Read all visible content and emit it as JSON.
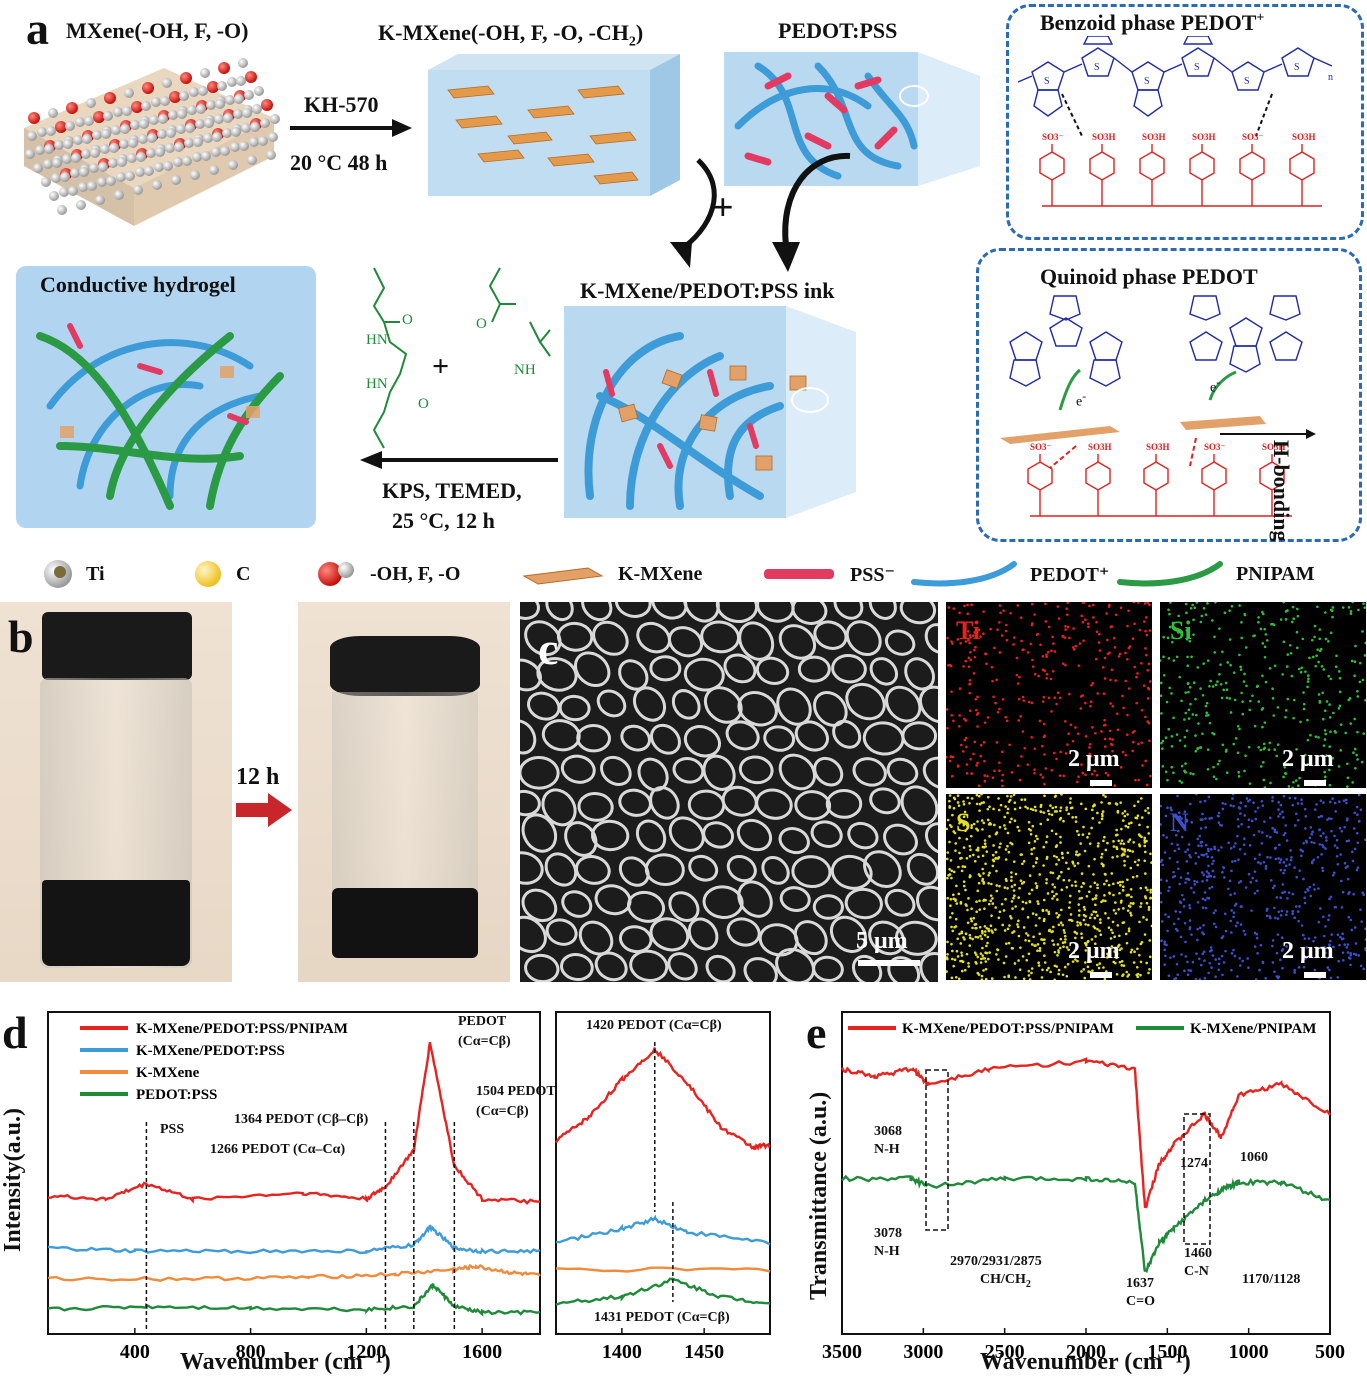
{
  "panel_a": {
    "letter": "a",
    "mxene_title": "MXene(-OH, F, -O)",
    "kmxene_title": "K-MXene(-OH, F, -O, -CH",
    "kmxene_sub": "2",
    "kmxene_close": ")",
    "pedot_pss_title": "PEDOT:PSS",
    "arrow1_top": "KH-570",
    "arrow1_bottom": "20 °C 48 h",
    "plus1": "+",
    "ink_title": "K-MXene/PEDOT:PSS ink",
    "hydrogel_title": "Conductive hydrogel",
    "plus2": "+",
    "arrow2_top": "KPS, TEMED,",
    "arrow2_bottom": "25 °C, 12 h",
    "benzoid_title": "Benzoid phase PEDOT",
    "benzoid_sup": "+",
    "quinoid_title": "Quinoid phase PEDOT",
    "hbonding": "H-bonding",
    "e_minus": "e",
    "so3": "SO",
    "so3h": "SO3H",
    "monomer_labels": [
      "O",
      "HN",
      "HN",
      "O",
      "O",
      "NH"
    ],
    "legend": [
      {
        "label": "Ti"
      },
      {
        "label": "C"
      },
      {
        "label": "-OH, F, -O"
      },
      {
        "label": "K-MXene"
      },
      {
        "label": "PSS⁻"
      },
      {
        "label": "PEDOT⁺"
      },
      {
        "label": "PNIPAM"
      }
    ]
  },
  "panel_b": {
    "letter": "b",
    "time": "12 h"
  },
  "panel_c": {
    "letter": "c",
    "scale_main": "5 μm",
    "maps": [
      {
        "element": "Ti",
        "scale": "2 μm",
        "color": "#e8201e"
      },
      {
        "element": "Si",
        "scale": "2 μm",
        "color": "#2fbf3a"
      },
      {
        "element": "S",
        "scale": "2 μm",
        "color": "#e6e21a"
      },
      {
        "element": "N",
        "scale": "2 μm",
        "color": "#3b4fd1"
      }
    ]
  },
  "panel_d": {
    "letter": "d",
    "xlabel": "Wavenumber (cm⁻¹)",
    "ylabel": "Intensity(a.u.)",
    "legend": [
      {
        "name": "K-MXene/PEDOT:PSS/PNIPAM",
        "color": "#e8221f"
      },
      {
        "name": "K-MXene/PEDOT:PSS",
        "color": "#3d9bd8"
      },
      {
        "name": "K-MXene",
        "color": "#f08a3c"
      },
      {
        "name": "PEDOT:PSS",
        "color": "#1f8a3a"
      }
    ],
    "annotations": [
      "PSS",
      "1266 PEDOT (Cα–Cα)",
      "1364 PEDOT (Cβ–Cβ)",
      "PEDOT",
      "(Cα=Cβ)",
      "1504 PEDOT",
      "(Cα=Cβ)"
    ],
    "inset_annotations": [
      "1420 PEDOT (Cα=Cβ)",
      "1431 PEDOT (Cα=Cβ)"
    ]
  },
  "panel_e": {
    "letter": "e",
    "xlabel": "Wavenumber (cm⁻¹)",
    "ylabel": "Transmittance (a.u.)",
    "legend": [
      {
        "name": "K-MXene/PEDOT:PSS/PNIPAM",
        "color": "#e8221f"
      },
      {
        "name": "K-MXene/PNIPAM",
        "color": "#1f8a3a"
      }
    ],
    "annotations": [
      "3068",
      "N-H",
      "3078",
      "N-H",
      "2970/2931/2875",
      "CH/CH",
      "1637",
      "C=O",
      "1460",
      "C-N",
      "1274",
      "1060",
      "1170/1128"
    ]
  },
  "chart_data": [
    {
      "type": "line",
      "title": "",
      "xlabel": "Wavenumber (cm⁻¹)",
      "ylabel": "Intensity(a.u.)",
      "xlim": [
        100,
        1800
      ],
      "xticks": [
        400,
        800,
        1200,
        1600
      ],
      "series": [
        {
          "name": "K-MXene/PEDOT:PSS/PNIPAM",
          "x": [
            100,
            300,
            440,
            600,
            980,
            1200,
            1266,
            1364,
            1420,
            1504,
            1600,
            1800
          ],
          "y": [
            5.0,
            4.9,
            5.4,
            4.9,
            5.1,
            4.9,
            5.3,
            6.5,
            10.0,
            6.0,
            4.9,
            4.8
          ]
        },
        {
          "name": "K-MXene/PEDOT:PSS",
          "x": [
            100,
            400,
            800,
            1200,
            1364,
            1420,
            1504,
            1600,
            1800
          ],
          "y": [
            3.3,
            3.2,
            3.2,
            3.2,
            3.4,
            4.0,
            3.3,
            3.2,
            3.2
          ]
        },
        {
          "name": "K-MXene",
          "x": [
            100,
            600,
            1000,
            1300,
            1500,
            1580,
            1700,
            1800
          ],
          "y": [
            2.3,
            2.3,
            2.35,
            2.45,
            2.6,
            2.7,
            2.5,
            2.4
          ]
        },
        {
          "name": "PEDOT:PSS",
          "x": [
            100,
            440,
            800,
            1200,
            1364,
            1431,
            1504,
            1600,
            1800
          ],
          "y": [
            1.3,
            1.4,
            1.35,
            1.3,
            1.4,
            2.1,
            1.4,
            1.2,
            1.2
          ]
        }
      ]
    },
    {
      "type": "line",
      "title": "",
      "xlabel": "",
      "ylabel": "",
      "xlim": [
        1360,
        1490
      ],
      "xticks": [
        1400,
        1450
      ],
      "series": [
        {
          "name": "K-MXene/PEDOT:PSS/PNIPAM",
          "x": [
            1360,
            1380,
            1400,
            1420,
            1440,
            1460,
            1480,
            1490
          ],
          "y": [
            7.2,
            7.9,
            9.0,
            9.9,
            8.9,
            7.6,
            7.0,
            7.1
          ]
        },
        {
          "name": "K-MXene/PEDOT:PSS",
          "x": [
            1360,
            1400,
            1420,
            1440,
            1490
          ],
          "y": [
            4.2,
            4.6,
            4.9,
            4.5,
            4.2
          ]
        },
        {
          "name": "K-MXene",
          "x": [
            1360,
            1490
          ],
          "y": [
            3.4,
            3.4
          ]
        },
        {
          "name": "PEDOT:PSS",
          "x": [
            1360,
            1400,
            1431,
            1460,
            1490
          ],
          "y": [
            2.4,
            2.6,
            3.1,
            2.6,
            2.4
          ]
        }
      ]
    },
    {
      "type": "line",
      "title": "",
      "xlabel": "Wavenumber (cm⁻¹)",
      "ylabel": "Transmittance (a.u.)",
      "xlim": [
        3500,
        500
      ],
      "xticks": [
        3500,
        3000,
        2500,
        2000,
        1500,
        1000,
        500
      ],
      "series": [
        {
          "name": "K-MXene/PEDOT:PSS/PNIPAM",
          "x": [
            3500,
            3300,
            3068,
            2970,
            2600,
            2000,
            1700,
            1637,
            1550,
            1460,
            1274,
            1170,
            1060,
            800,
            500
          ],
          "y": [
            8.0,
            7.8,
            8.0,
            7.6,
            8.0,
            8.2,
            8.0,
            4.3,
            5.5,
            6.0,
            6.8,
            6.2,
            7.3,
            7.6,
            6.8
          ]
        },
        {
          "name": "K-MXene/PNIPAM",
          "x": [
            3500,
            3078,
            2970,
            2500,
            2000,
            1700,
            1637,
            1550,
            1460,
            1274,
            1170,
            1060,
            800,
            500
          ],
          "y": [
            5.1,
            5.1,
            4.9,
            5.1,
            5.1,
            5.0,
            2.6,
            3.4,
            3.8,
            4.5,
            4.8,
            5.0,
            5.0,
            4.5
          ]
        }
      ]
    }
  ]
}
